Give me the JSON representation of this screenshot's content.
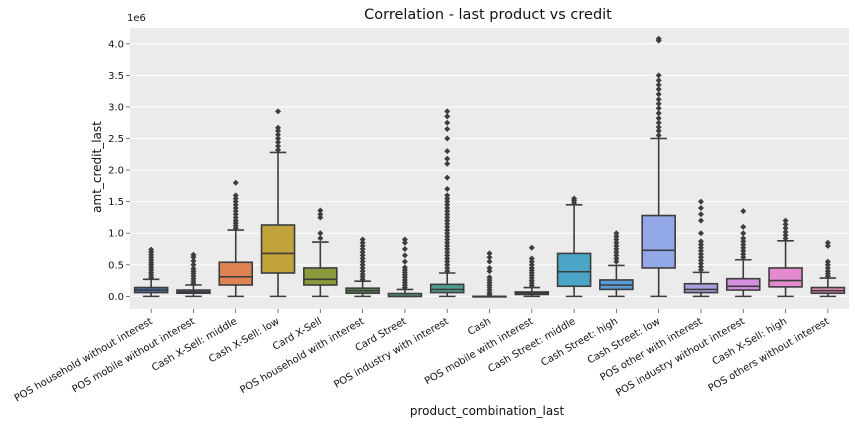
{
  "chart_data": {
    "type": "box",
    "title": "Correlation - last product vs credit",
    "xlabel": "product_combination_last",
    "ylabel": "amt_credit_last",
    "y_multiplier_label": "1e6",
    "ylim": [
      -0.2,
      4.25
    ],
    "yticks": [
      0.0,
      0.5,
      1.0,
      1.5,
      2.0,
      2.5,
      3.0,
      3.5,
      4.0
    ],
    "ytick_labels": [
      "0.0",
      "0.5",
      "1.0",
      "1.5",
      "2.0",
      "2.5",
      "3.0",
      "3.5",
      "4.0"
    ],
    "grid": true,
    "boxes": [
      {
        "category": "POS household without interest",
        "color": "#4c72b0",
        "whislo": 0.0,
        "q1": 0.06,
        "med": 0.1,
        "q3": 0.14,
        "whishi": 0.27,
        "fliers": [
          0.3,
          0.34,
          0.38,
          0.42,
          0.46,
          0.5,
          0.54,
          0.58,
          0.62,
          0.66,
          0.7,
          0.74
        ]
      },
      {
        "category": "POS mobile without interest",
        "color": "#4c72b0",
        "whislo": 0.0,
        "q1": 0.05,
        "med": 0.07,
        "q3": 0.1,
        "whishi": 0.18,
        "fliers": [
          0.2,
          0.24,
          0.28,
          0.32,
          0.36,
          0.4,
          0.44,
          0.5,
          0.56,
          0.62,
          0.66
        ]
      },
      {
        "category": "Cash X-Sell: middle",
        "color": "#dd8452",
        "whislo": 0.0,
        "q1": 0.18,
        "med": 0.31,
        "q3": 0.54,
        "whishi": 1.05,
        "fliers": [
          1.08,
          1.12,
          1.16,
          1.2,
          1.25,
          1.3,
          1.35,
          1.4,
          1.45,
          1.5,
          1.55,
          1.6,
          1.8
        ]
      },
      {
        "category": "Cash X-Sell: low",
        "color": "#c0a43b",
        "whislo": 0.0,
        "q1": 0.37,
        "med": 0.68,
        "q3": 1.13,
        "whishi": 2.28,
        "fliers": [
          2.32,
          2.38,
          2.44,
          2.5,
          2.56,
          2.62,
          2.67,
          2.93
        ]
      },
      {
        "category": "Card X-Sell",
        "color": "#8c9a3c",
        "whislo": 0.0,
        "q1": 0.18,
        "med": 0.27,
        "q3": 0.45,
        "whishi": 0.86,
        "fliers": [
          0.92,
          1.0,
          1.25,
          1.3,
          1.36
        ]
      },
      {
        "category": "POS household with interest",
        "color": "#5a8a4e",
        "whislo": 0.0,
        "q1": 0.05,
        "med": 0.09,
        "q3": 0.13,
        "whishi": 0.24,
        "fliers": [
          0.27,
          0.31,
          0.35,
          0.4,
          0.45,
          0.5,
          0.55,
          0.6,
          0.65,
          0.7,
          0.75,
          0.8,
          0.85,
          0.9
        ]
      },
      {
        "category": "Card Street",
        "color": "#4f9a72",
        "whislo": 0.0,
        "q1": 0.0,
        "med": 0.0,
        "q3": 0.045,
        "whishi": 0.11,
        "fliers": [
          0.14,
          0.18,
          0.22,
          0.26,
          0.3,
          0.34,
          0.38,
          0.42,
          0.46,
          0.55,
          0.65,
          0.75,
          0.85,
          0.9
        ]
      },
      {
        "category": "POS industry with interest",
        "color": "#4c9f90",
        "whislo": 0.0,
        "q1": 0.06,
        "med": 0.11,
        "q3": 0.19,
        "whishi": 0.37,
        "fliers": [
          0.4,
          0.45,
          0.5,
          0.55,
          0.6,
          0.65,
          0.7,
          0.75,
          0.8,
          0.85,
          0.9,
          0.95,
          1.0,
          1.05,
          1.1,
          1.15,
          1.2,
          1.25,
          1.3,
          1.35,
          1.4,
          1.45,
          1.5,
          1.55,
          1.6,
          1.7,
          1.88,
          2.1,
          2.18,
          2.3,
          2.5,
          2.65,
          2.75,
          2.85,
          2.93
        ]
      },
      {
        "category": "Cash",
        "color": "#4c9aa8",
        "whislo": 0.0,
        "q1": 0.0,
        "med": 0.0,
        "q3": 0.0,
        "whishi": 0.0,
        "fliers": [
          0.03,
          0.06,
          0.1,
          0.14,
          0.18,
          0.22,
          0.26,
          0.3,
          0.4,
          0.45,
          0.55,
          0.62,
          0.68
        ]
      },
      {
        "category": "POS mobile with interest",
        "color": "#4c9bb8",
        "whislo": 0.0,
        "q1": 0.03,
        "med": 0.05,
        "q3": 0.07,
        "whishi": 0.14,
        "fliers": [
          0.17,
          0.21,
          0.25,
          0.29,
          0.33,
          0.37,
          0.41,
          0.45,
          0.5,
          0.55,
          0.6,
          0.77
        ]
      },
      {
        "category": "Cash Street: middle",
        "color": "#4aa5c6",
        "whislo": 0.0,
        "q1": 0.16,
        "med": 0.39,
        "q3": 0.68,
        "whishi": 1.45,
        "fliers": [
          1.48,
          1.52,
          1.55
        ]
      },
      {
        "category": "Cash Street: high",
        "color": "#5b9bd5",
        "whislo": 0.0,
        "q1": 0.11,
        "med": 0.18,
        "q3": 0.26,
        "whishi": 0.49,
        "fliers": [
          0.55,
          0.6,
          0.65,
          0.7,
          0.75,
          0.8,
          0.85,
          0.9,
          0.95,
          1.0
        ]
      },
      {
        "category": "Cash Street: low",
        "color": "#93a8e8",
        "whislo": 0.0,
        "q1": 0.45,
        "med": 0.73,
        "q3": 1.28,
        "whishi": 2.5,
        "fliers": [
          2.55,
          2.62,
          2.68,
          2.75,
          2.82,
          2.9,
          2.98,
          3.05,
          3.12,
          3.2,
          3.28,
          3.35,
          3.42,
          3.5,
          4.05,
          4.08
        ]
      },
      {
        "category": "POS other with interest",
        "color": "#a99ee0",
        "whislo": 0.0,
        "q1": 0.06,
        "med": 0.11,
        "q3": 0.2,
        "whishi": 0.38,
        "fliers": [
          0.42,
          0.47,
          0.52,
          0.57,
          0.62,
          0.67,
          0.72,
          0.77,
          0.82,
          0.87,
          1.0,
          1.2,
          1.3,
          1.4,
          1.5
        ]
      },
      {
        "category": "POS industry without interest",
        "color": "#d48ee0",
        "whislo": 0.0,
        "q1": 0.1,
        "med": 0.16,
        "q3": 0.28,
        "whishi": 0.58,
        "fliers": [
          0.62,
          0.67,
          0.72,
          0.77,
          0.82,
          0.87,
          0.92,
          1.0,
          1.1,
          1.35
        ]
      },
      {
        "category": "Cash X-Sell: high",
        "color": "#e58ad0",
        "whislo": 0.0,
        "q1": 0.15,
        "med": 0.25,
        "q3": 0.45,
        "whishi": 0.88,
        "fliers": [
          0.92,
          0.97,
          1.02,
          1.08,
          1.14,
          1.2
        ]
      },
      {
        "category": "POS others without interest",
        "color": "#e889b5",
        "whislo": 0.0,
        "q1": 0.05,
        "med": 0.09,
        "q3": 0.14,
        "whishi": 0.29,
        "fliers": [
          0.32,
          0.36,
          0.4,
          0.45,
          0.5,
          0.55,
          0.8,
          0.85
        ]
      }
    ]
  }
}
